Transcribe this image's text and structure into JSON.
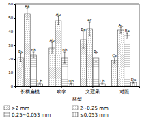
{
  "chart_data": {
    "type": "bar",
    "x_label": "林型",
    "categories": [
      "长柄扁桃",
      "欧李",
      "文冠果",
      "对照"
    ],
    "series": [
      {
        "name": ">2 mm",
        "color": "#555555",
        "values": [
          21,
          28,
          34,
          19
        ],
        "errors": [
          3,
          4,
          6,
          2
        ],
        "letters": [
          "Bc",
          "Ab",
          "Ba",
          "Cc"
        ]
      },
      {
        "name": "2~0.25 mm",
        "color": "#555555",
        "values": [
          53,
          48,
          42,
          41
        ],
        "errors": [
          4,
          3,
          5,
          2
        ],
        "letters": [
          "Aa",
          "Ab",
          "Ac",
          "Ac"
        ]
      },
      {
        "name": "0.25~0.053 mm",
        "color": "#555555",
        "values": [
          23,
          21,
          21,
          37
        ],
        "errors": [
          2,
          4,
          3,
          2
        ],
        "letters": [
          "Bb",
          "Bb",
          "Bc",
          "Ba"
        ]
      },
      {
        "name": "≤0.053 mm",
        "color": "#555555",
        "values": [
          2,
          2,
          2,
          3
        ],
        "errors": [
          0.5,
          0.5,
          0.5,
          0.5
        ],
        "letters": [
          "Cb",
          "Db",
          "Cb",
          "Da"
        ]
      }
    ],
    "ylim": [
      0,
      60
    ],
    "yticks": [
      0,
      10,
      20,
      30,
      40,
      50,
      60
    ],
    "legend": "bottom"
  }
}
